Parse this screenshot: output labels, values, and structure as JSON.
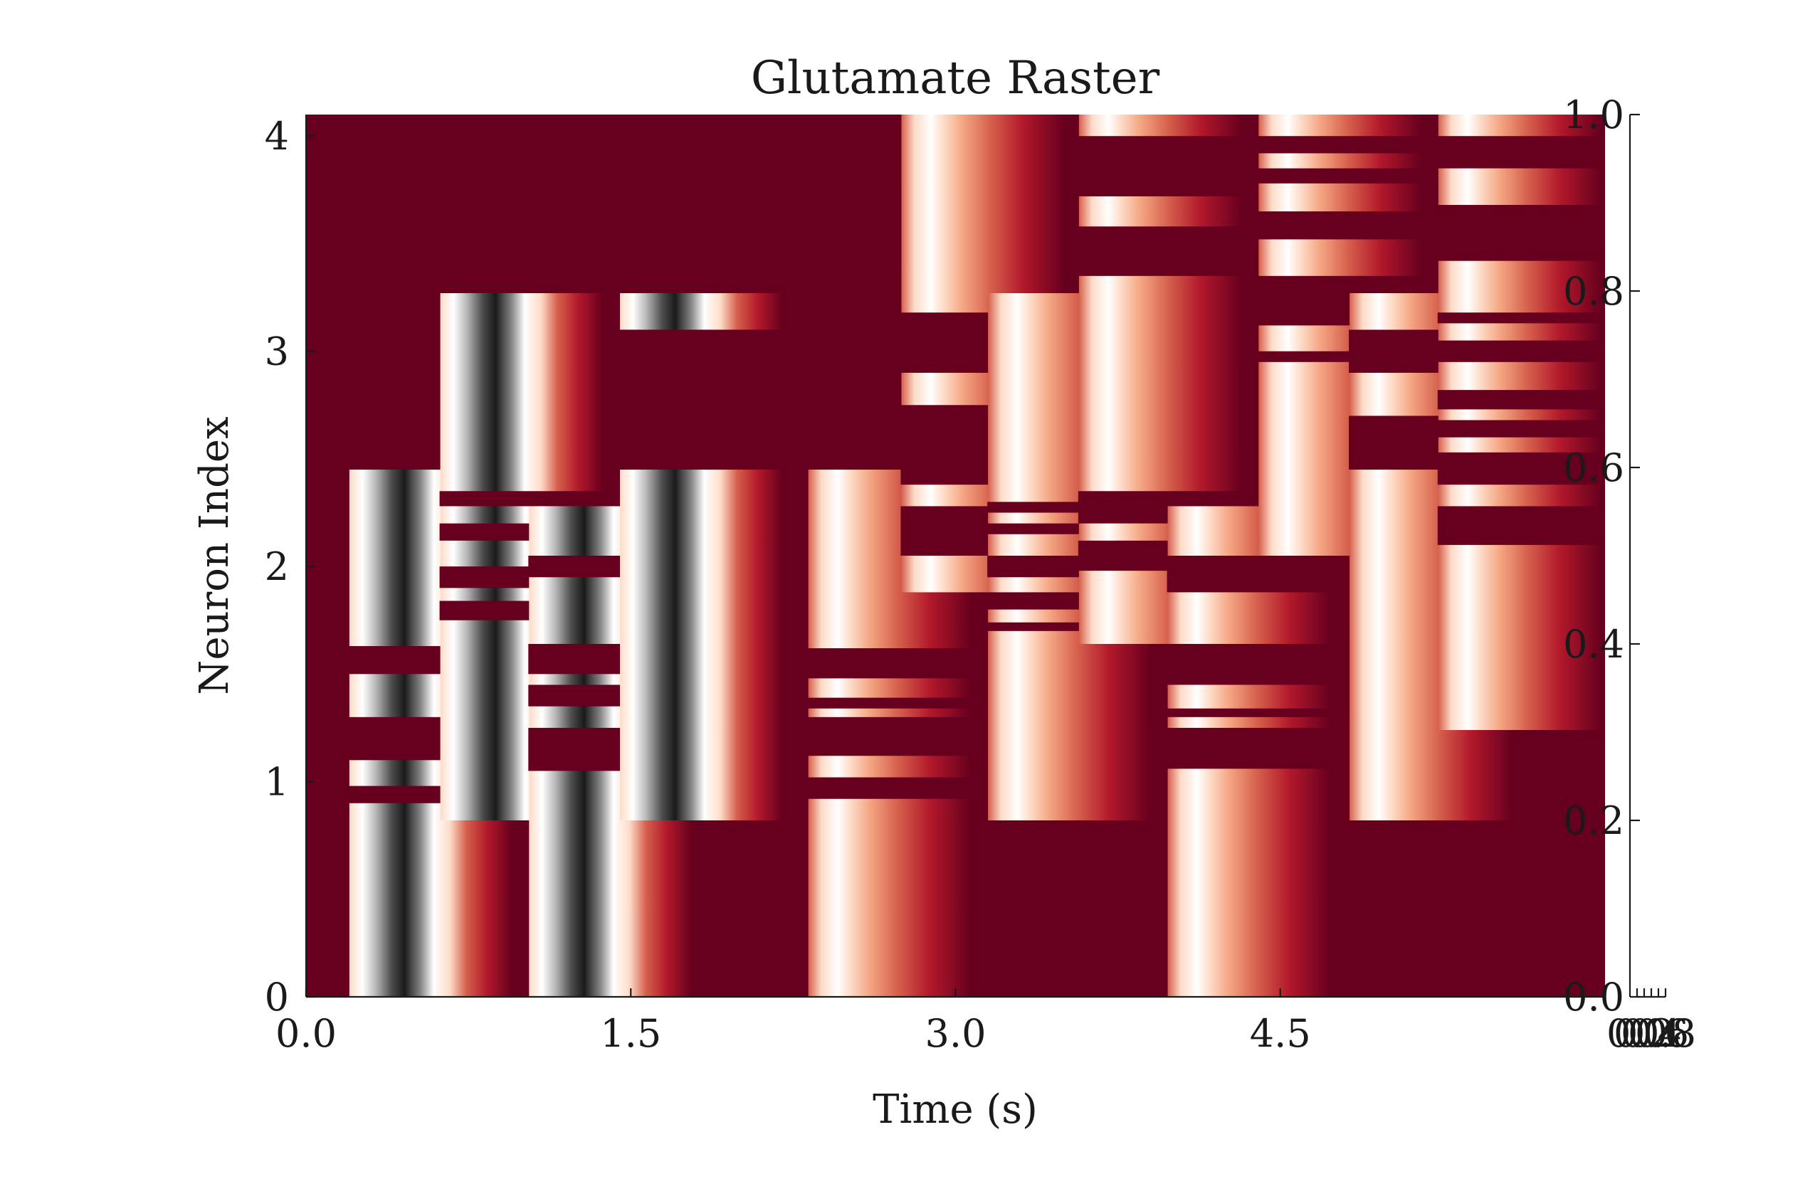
{
  "chart_data": {
    "type": "heatmap",
    "title": "Glutamate Raster",
    "xlabel": "Time (s)",
    "ylabel": "Neuron Index",
    "xlim": [
      0.0,
      6.0
    ],
    "ylim": [
      0,
      4.1
    ],
    "x_ticks": [
      "0.0",
      "1.5",
      "3.0",
      "4.5"
    ],
    "y_ticks": [
      "0",
      "1",
      "2",
      "3",
      "4"
    ],
    "right_axis": {
      "ticks": [
        "0.0",
        "0.2",
        "0.4",
        "0.6",
        "0.8",
        "1.0"
      ],
      "colorbar_tick_labels": [
        "0.0",
        "0.2",
        "0.4",
        "0.6",
        "0.8"
      ]
    },
    "grid": false,
    "legend": "none",
    "colormap": [
      "#67001f",
      "#b2182b",
      "#d6604d",
      "#f4a582",
      "#fddbc7",
      "#ffffff",
      "#e0e0e0",
      "#bababa",
      "#878787",
      "#4d4d4d",
      "#1a1a1a"
    ],
    "colors": {
      "background": "#67001f",
      "peak": "#1a1a1a"
    },
    "bursts": [
      {
        "t": 0.2,
        "y0": 0.0,
        "y1": 2.45,
        "intensity": 1.0,
        "gaps": [
          [
            1.1,
            1.3
          ],
          [
            1.5,
            1.63
          ],
          [
            0.9,
            0.98
          ],
          [
            1.2,
            1.28
          ]
        ]
      },
      {
        "t": 0.62,
        "y0": 0.82,
        "y1": 3.27,
        "intensity": 1.0,
        "gaps": [
          [
            1.75,
            1.84
          ],
          [
            1.9,
            2.0
          ],
          [
            2.12,
            2.2
          ],
          [
            2.28,
            2.35
          ]
        ]
      },
      {
        "t": 1.03,
        "y0": 0.0,
        "y1": 2.28,
        "intensity": 1.0,
        "gaps": [
          [
            1.05,
            1.25
          ],
          [
            1.35,
            1.45
          ],
          [
            1.5,
            1.64
          ],
          [
            1.95,
            2.05
          ]
        ]
      },
      {
        "t": 1.45,
        "y0": 0.82,
        "y1": 3.27,
        "intensity": 1.0,
        "gaps": [
          [
            2.45,
            3.1
          ],
          [
            2.7,
            2.8
          ],
          [
            2.87,
            3.1
          ]
        ]
      },
      {
        "t": 2.32,
        "y0": 0.0,
        "y1": 2.45,
        "intensity": 0.55,
        "gaps": [
          [
            1.12,
            1.3
          ],
          [
            1.48,
            1.62
          ],
          [
            0.92,
            1.02
          ],
          [
            1.34,
            1.39
          ]
        ]
      },
      {
        "t": 2.75,
        "y0": 3.18,
        "y1": 4.1,
        "intensity": 0.55,
        "gaps": []
      },
      {
        "t": 2.75,
        "y0": 1.88,
        "y1": 2.9,
        "intensity": 0.55,
        "gaps": [
          [
            2.05,
            2.28
          ],
          [
            2.38,
            2.75
          ]
        ]
      },
      {
        "t": 3.15,
        "y0": 0.82,
        "y1": 3.27,
        "intensity": 0.55,
        "gaps": [
          [
            1.7,
            1.74
          ],
          [
            1.8,
            1.88
          ],
          [
            1.95,
            2.05
          ],
          [
            2.15,
            2.2
          ],
          [
            2.25,
            2.3
          ]
        ]
      },
      {
        "t": 3.57,
        "y0": 1.64,
        "y1": 4.1,
        "intensity": 0.55,
        "gaps": [
          [
            1.98,
            2.12
          ],
          [
            2.2,
            2.35
          ],
          [
            3.35,
            3.58
          ],
          [
            3.72,
            4.0
          ]
        ]
      },
      {
        "t": 3.98,
        "y0": 0.0,
        "y1": 2.28,
        "intensity": 0.55,
        "gaps": [
          [
            1.06,
            1.25
          ],
          [
            1.3,
            1.34
          ],
          [
            1.45,
            1.64
          ],
          [
            1.88,
            2.05
          ]
        ]
      },
      {
        "t": 4.4,
        "y0": 2.05,
        "y1": 4.1,
        "intensity": 0.55,
        "gaps": [
          [
            2.95,
            3.0
          ],
          [
            3.12,
            3.35
          ],
          [
            3.52,
            3.65
          ],
          [
            3.78,
            3.85
          ],
          [
            3.92,
            4.0
          ]
        ]
      },
      {
        "t": 4.82,
        "y0": 0.82,
        "y1": 3.27,
        "intensity": 0.55,
        "gaps": [
          [
            2.45,
            2.7
          ],
          [
            2.9,
            3.1
          ]
        ]
      },
      {
        "t": 5.23,
        "y0": 1.24,
        "y1": 4.1,
        "intensity": 0.55,
        "gaps": [
          [
            2.1,
            2.28
          ],
          [
            2.38,
            2.53
          ],
          [
            2.6,
            2.68
          ],
          [
            2.73,
            2.82
          ],
          [
            2.95,
            3.05
          ],
          [
            3.13,
            3.18
          ],
          [
            3.42,
            3.68
          ],
          [
            3.85,
            4.0
          ]
        ]
      }
    ]
  }
}
